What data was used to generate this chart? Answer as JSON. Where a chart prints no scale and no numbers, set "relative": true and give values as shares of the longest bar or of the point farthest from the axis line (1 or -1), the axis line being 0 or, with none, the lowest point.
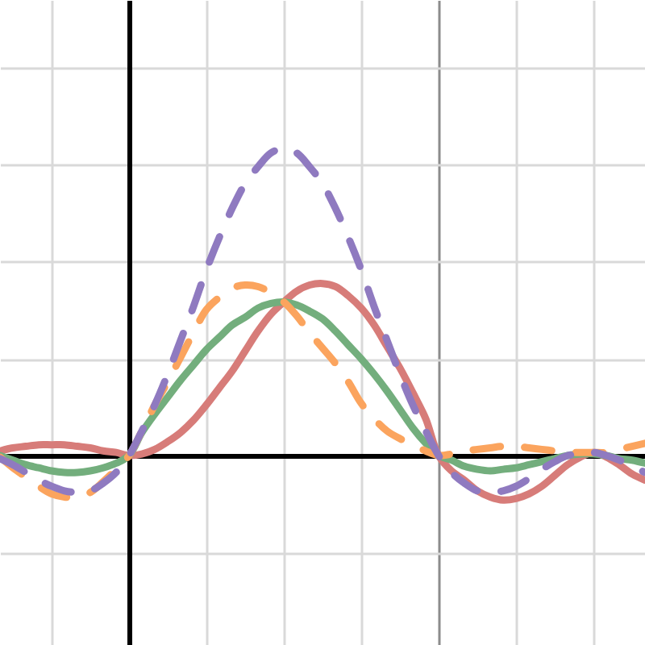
{
  "chart_data": {
    "type": "line",
    "relative": true,
    "grid": true,
    "categories": [
      null,
      null,
      null,
      null,
      null,
      null,
      null,
      null,
      null,
      null,
      null,
      null,
      null,
      null,
      null,
      null,
      null,
      null,
      null,
      null,
      null,
      null,
      null,
      null,
      null,
      null,
      null,
      null,
      null,
      null,
      null,
      null,
      null,
      null,
      null,
      null,
      null,
      null,
      null,
      null,
      null,
      null,
      null,
      null,
      null,
      null,
      null,
      null,
      null,
      null,
      null
    ],
    "series": [
      {
        "color": "#d77c79",
        "line_style": "solid",
        "values": [
          0.015,
          0.025,
          0.03,
          0.035,
          0.035,
          0.035,
          0.03,
          0.025,
          0.015,
          0.01,
          0,
          0.005,
          0.02,
          0.045,
          0.075,
          0.115,
          0.165,
          0.22,
          0.275,
          0.34,
          0.405,
          0.46,
          0.5,
          0.535,
          0.555,
          0.56,
          0.55,
          0.52,
          0.48,
          0.425,
          0.355,
          0.285,
          0.205,
          0.12,
          0,
          -0.05,
          -0.08,
          -0.115,
          -0.135,
          -0.145,
          -0.14,
          -0.125,
          -0.1,
          -0.065,
          -0.03,
          -0.005,
          0.01,
          -0.005,
          -0.03,
          -0.06,
          -0.08
        ]
      },
      {
        "color": "#73ae7d",
        "line_style": "solid",
        "values": [
          0,
          -0.015,
          -0.03,
          -0.04,
          -0.05,
          -0.055,
          -0.055,
          -0.05,
          -0.04,
          -0.025,
          0,
          0.075,
          0.135,
          0.19,
          0.245,
          0.295,
          0.345,
          0.385,
          0.425,
          0.45,
          0.48,
          0.495,
          0.5,
          0.49,
          0.47,
          0.445,
          0.405,
          0.36,
          0.315,
          0.265,
          0.21,
          0.15,
          0.09,
          0.04,
          0,
          -0.015,
          -0.035,
          -0.045,
          -0.05,
          -0.045,
          -0.04,
          -0.03,
          -0.02,
          -0.01,
          0,
          0.005,
          0.005,
          0,
          -0.01,
          -0.015,
          -0.025
        ]
      },
      {
        "color": "#fba45e",
        "line_style": "dashed",
        "values": [
          -0.005,
          -0.04,
          -0.07,
          -0.1,
          -0.125,
          -0.135,
          -0.135,
          -0.12,
          -0.085,
          -0.045,
          0,
          0.08,
          0.165,
          0.24,
          0.32,
          0.4,
          0.475,
          0.515,
          0.545,
          0.555,
          0.55,
          0.53,
          0.5,
          0.455,
          0.4,
          0.35,
          0.3,
          0.24,
          0.17,
          0.12,
          0.08,
          0.055,
          0.035,
          0.015,
          0,
          0.005,
          0.015,
          0.02,
          0.025,
          0.03,
          0.03,
          0.025,
          0.02,
          0.015,
          0.01,
          0.01,
          0.01,
          0.01,
          0.02,
          0.03,
          0.04
        ]
      },
      {
        "color": "#8f7ac0",
        "line_style": "dashed",
        "values": [
          -0.01,
          -0.03,
          -0.055,
          -0.08,
          -0.1,
          -0.115,
          -0.12,
          -0.115,
          -0.09,
          -0.055,
          0,
          0.08,
          0.165,
          0.265,
          0.375,
          0.485,
          0.605,
          0.71,
          0.805,
          0.885,
          0.94,
          0.985,
          1,
          0.985,
          0.94,
          0.885,
          0.805,
          0.71,
          0.605,
          0.485,
          0.375,
          0.265,
          0.165,
          0.08,
          0,
          -0.055,
          -0.09,
          -0.115,
          -0.12,
          -0.115,
          -0.1,
          -0.075,
          -0.045,
          -0.02,
          0,
          0.005,
          0.01,
          0,
          -0.015,
          -0.035,
          -0.055
        ]
      }
    ]
  }
}
